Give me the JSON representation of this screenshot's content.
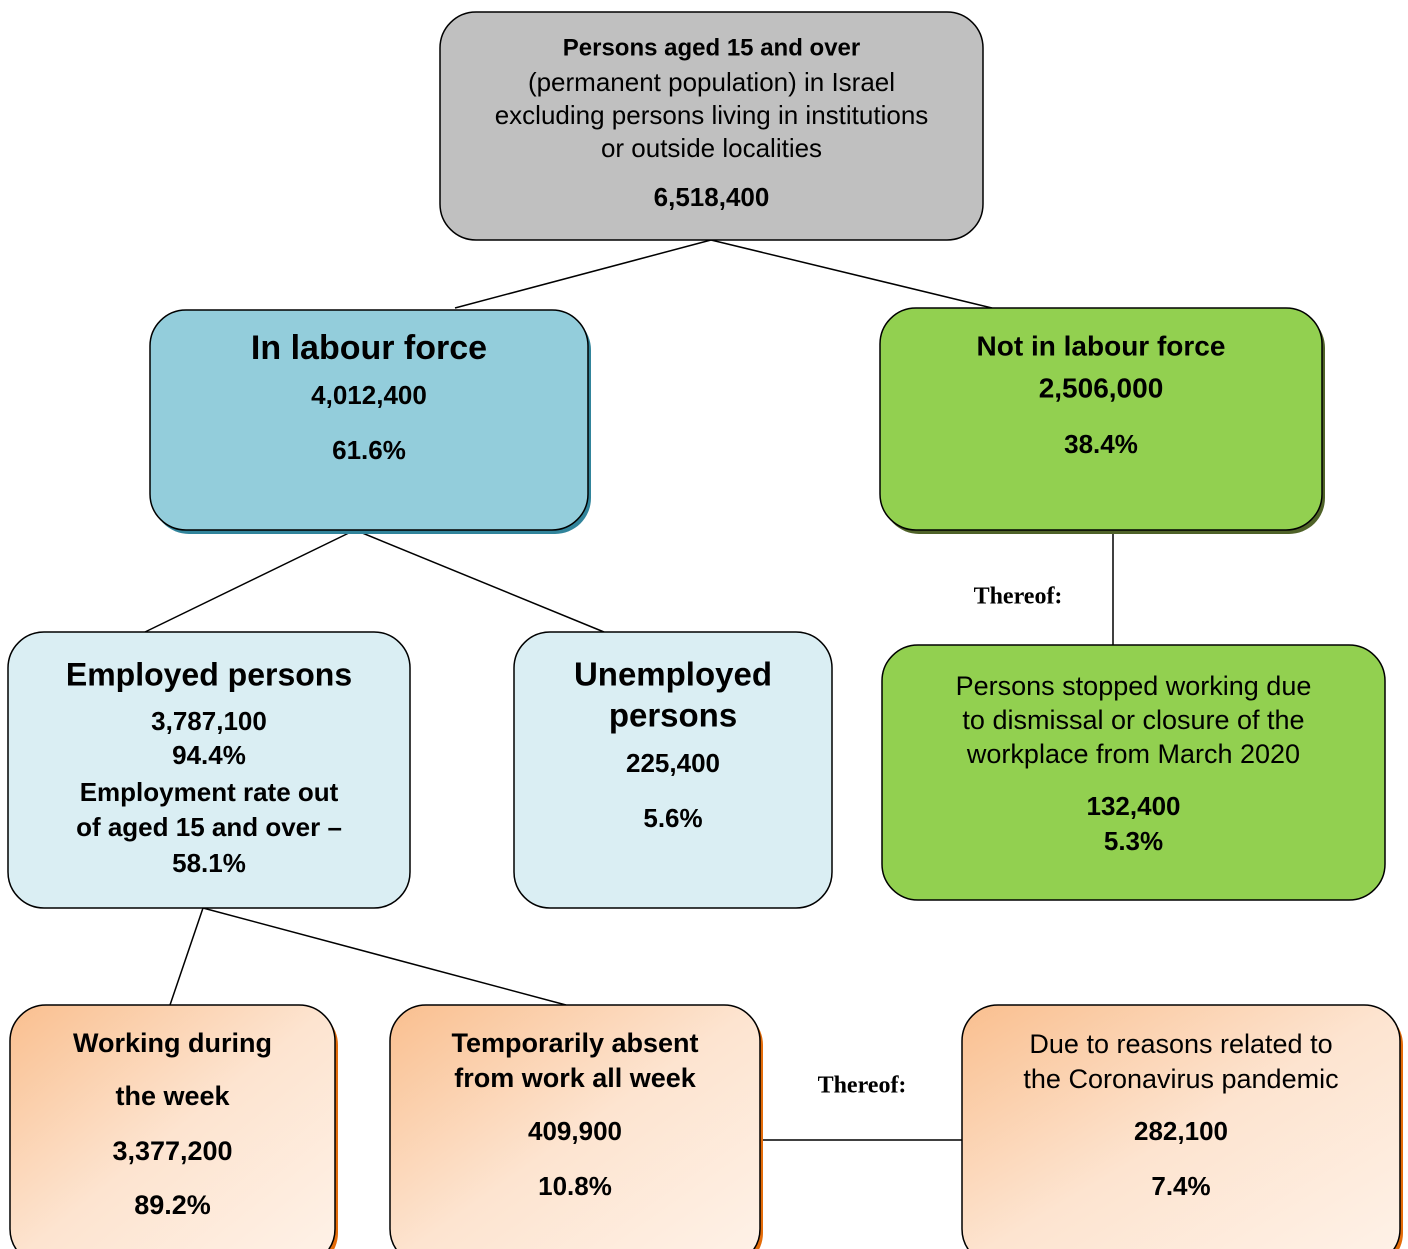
{
  "nodes": [
    {
      "lines": [
        "Persons aged 15 and over",
        "(permanent population) in Israel",
        "excluding persons living in institutions",
        "or outside localities",
        "6,518,400"
      ]
    },
    {
      "lines": [
        "In labour force",
        "4,012,400",
        "61.6%"
      ]
    },
    {
      "lines": [
        "Not in labour force",
        "2,506,000",
        "38.4%"
      ]
    },
    {
      "lines": [
        "Employed persons",
        "3,787,100",
        "94.4%",
        "Employment rate out",
        "of aged 15 and over –",
        "58.1%"
      ]
    },
    {
      "lines": [
        "Unemployed",
        "persons",
        "225,400",
        "5.6%"
      ]
    },
    {
      "lines": [
        "Persons stopped working due",
        "to dismissal or closure of the",
        "workplace from March 2020",
        "132,400",
        "5.3%"
      ]
    },
    {
      "lines": [
        "Working during",
        "the week",
        "3,377,200",
        "89.2%"
      ]
    },
    {
      "lines": [
        "Temporarily absent",
        "from work all week",
        "409,900",
        "10.8%"
      ]
    },
    {
      "lines": [
        "Due to reasons related to",
        "the Coronavirus pandemic",
        "282,100",
        "7.4%"
      ]
    }
  ],
  "notes": [
    "Thereof:",
    "Thereof:"
  ]
}
